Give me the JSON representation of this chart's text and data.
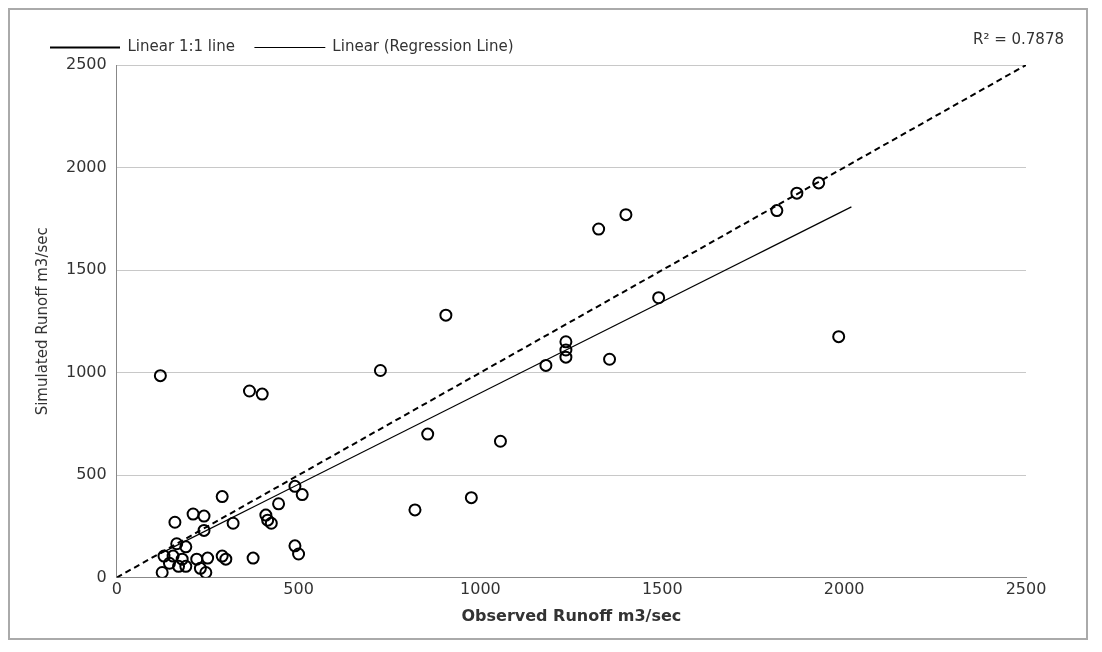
{
  "chart_data": {
    "type": "scatter",
    "xlabel": "Observed Runoff m3/sec",
    "ylabel": "Simulated Runoff m3/sec",
    "xlim": [
      0,
      2500
    ],
    "xticks": [
      0,
      500,
      1000,
      1500,
      2000,
      2500
    ],
    "ylim": [
      0,
      2500
    ],
    "yticks": [
      0,
      500,
      1000,
      1500,
      2000,
      2500
    ],
    "grid": "y",
    "legend": "top",
    "annotations": [
      "R² = 0.7878"
    ],
    "series": [
      {
        "color": "#000000",
        "marker": "circle",
        "x": [
          120,
          365,
          400,
          725,
          905,
          855,
          820,
          975,
          1055,
          1180,
          1235,
          1235,
          1235,
          1355,
          1325,
          1400,
          1490,
          1815,
          1870,
          1930,
          1985,
          490,
          510,
          445,
          290,
          410,
          415,
          425,
          320,
          240,
          210,
          240,
          160,
          490,
          500,
          375,
          290,
          300,
          250,
          220,
          245,
          125,
          130,
          165,
          190,
          155,
          180,
          190,
          145,
          170,
          230
        ],
        "values": [
          985,
          910,
          895,
          1010,
          1280,
          700,
          330,
          390,
          665,
          1035,
          1150,
          1110,
          1075,
          1065,
          1700,
          1770,
          1365,
          1790,
          1875,
          1925,
          1175,
          445,
          405,
          360,
          395,
          305,
          280,
          265,
          265,
          230,
          310,
          300,
          270,
          155,
          115,
          95,
          105,
          90,
          95,
          90,
          25,
          25,
          105,
          165,
          150,
          105,
          90,
          55,
          70,
          55,
          45
        ]
      },
      {
        "type": "line",
        "name": "Linear 1:1 line",
        "color": "#000000",
        "line_style": "dashed",
        "marker": "none",
        "x": [
          0,
          2500
        ],
        "values": [
          0,
          2500
        ]
      },
      {
        "type": "line",
        "name": "Linear (Regression Line)",
        "color": "#000000",
        "line_style": "solid",
        "marker": "none",
        "x": [
          120,
          2020
        ],
        "values": [
          117,
          1808
        ]
      }
    ]
  }
}
